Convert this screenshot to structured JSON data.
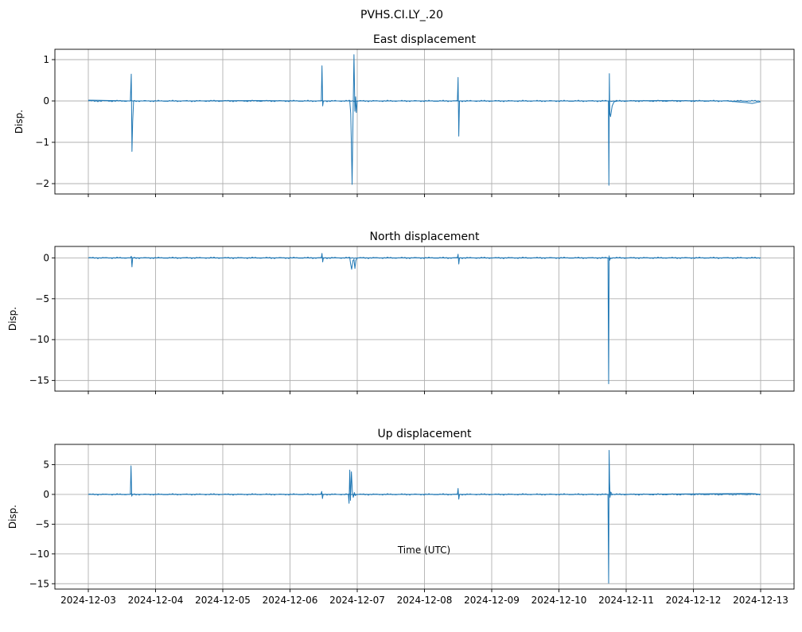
{
  "figure": {
    "suptitle": "PVHS.CI.LY_.20",
    "xlabel": "Time (UTC)",
    "line_color": "#1f77b4"
  },
  "chart_data": [
    {
      "type": "line",
      "title": "East displacement",
      "ylabel": "Disp.",
      "xlim": [
        "2024-12-03",
        "2024-12-13"
      ],
      "ylim": [
        -2.25,
        1.25
      ],
      "yticks": [
        1,
        0,
        -1,
        -2
      ],
      "ytick_labels": [
        "1",
        "0",
        "−1",
        "−2"
      ],
      "grid": true,
      "baseline": 0,
      "x": [
        "2024-12-03T00:00",
        "2024-12-03T15:00",
        "2024-12-03T15:20",
        "2024-12-03T15:35",
        "2024-12-03T15:50",
        "2024-12-03T16:10",
        "2024-12-04T12:00",
        "2024-12-05T12:00",
        "2024-12-06T06:00",
        "2024-12-06T11:10",
        "2024-12-06T11:25",
        "2024-12-06T11:40",
        "2024-12-06T11:55",
        "2024-12-06T21:20",
        "2024-12-06T21:40",
        "2024-12-06T21:55",
        "2024-12-06T22:10",
        "2024-12-06T22:30",
        "2024-12-06T22:50",
        "2024-12-06T23:10",
        "2024-12-06T23:25",
        "2024-12-06T23:40",
        "2024-12-07T00:00",
        "2024-12-07T12:00",
        "2024-12-08T11:45",
        "2024-12-08T12:00",
        "2024-12-08T12:15",
        "2024-12-08T12:30",
        "2024-12-09T12:00",
        "2024-12-10T12:00",
        "2024-12-10T17:40",
        "2024-12-10T17:50",
        "2024-12-10T18:00",
        "2024-12-10T18:10",
        "2024-12-10T18:25",
        "2024-12-10T19:00",
        "2024-12-10T19:40",
        "2024-12-10T21:00",
        "2024-12-11T12:00",
        "2024-12-12T12:00",
        "2024-12-12T19:00",
        "2024-12-12T21:00",
        "2024-12-12T23:00",
        "2024-12-13T00:00"
      ],
      "values": [
        0.02,
        0.0,
        0.65,
        -1.22,
        -0.5,
        0.0,
        0.0,
        0.01,
        0.0,
        0.0,
        0.85,
        -0.12,
        0.0,
        0.0,
        -0.3,
        -1.05,
        -2.02,
        -0.4,
        1.12,
        -0.25,
        0.1,
        -0.28,
        0.0,
        0.0,
        0.0,
        0.57,
        -0.85,
        0.0,
        0.0,
        0.0,
        0.0,
        -2.04,
        0.66,
        -0.3,
        -0.38,
        -0.12,
        -0.02,
        0.0,
        0.01,
        0.0,
        -0.04,
        -0.06,
        -0.03,
        -0.02
      ]
    },
    {
      "type": "line",
      "title": "North displacement",
      "ylabel": "Disp.",
      "xlim": [
        "2024-12-03",
        "2024-12-13"
      ],
      "ylim": [
        -16.3,
        1.4
      ],
      "yticks": [
        0,
        -5,
        -10,
        -15
      ],
      "ytick_labels": [
        "0",
        "−5",
        "−10",
        "−15"
      ],
      "grid": true,
      "baseline": 0,
      "x": [
        "2024-12-03T00:00",
        "2024-12-03T15:00",
        "2024-12-03T15:20",
        "2024-12-03T15:35",
        "2024-12-03T15:50",
        "2024-12-06T11:10",
        "2024-12-06T11:25",
        "2024-12-06T11:40",
        "2024-12-06T11:55",
        "2024-12-06T21:20",
        "2024-12-06T21:40",
        "2024-12-06T22:00",
        "2024-12-06T22:30",
        "2024-12-06T22:50",
        "2024-12-06T23:10",
        "2024-12-06T23:30",
        "2024-12-07T00:00",
        "2024-12-08T11:45",
        "2024-12-08T12:00",
        "2024-12-08T12:15",
        "2024-12-08T12:30",
        "2024-12-10T17:30",
        "2024-12-10T17:45",
        "2024-12-10T17:55",
        "2024-12-10T18:05",
        "2024-12-10T18:20",
        "2024-12-10T19:00",
        "2024-12-13T00:00"
      ],
      "values": [
        0.0,
        0.0,
        0.2,
        -1.1,
        0.0,
        0.0,
        0.55,
        -0.5,
        0.0,
        0.0,
        -0.8,
        -1.4,
        -0.3,
        -0.2,
        -1.3,
        -0.3,
        0.0,
        0.0,
        0.45,
        -0.75,
        0.0,
        0.0,
        -15.4,
        0.25,
        -0.3,
        -0.1,
        0.0,
        0.0
      ]
    },
    {
      "type": "line",
      "title": "Up displacement",
      "ylabel": "Disp.",
      "xlim": [
        "2024-12-03",
        "2024-12-13"
      ],
      "ylim": [
        -15.9,
        8.4
      ],
      "yticks": [
        5,
        0,
        -5,
        -10,
        -15
      ],
      "ytick_labels": [
        "5",
        "0",
        "−5",
        "−10",
        "−15"
      ],
      "grid": true,
      "baseline": 0,
      "x": [
        "2024-12-03T00:00",
        "2024-12-03T15:00",
        "2024-12-03T15:15",
        "2024-12-03T15:30",
        "2024-12-03T15:45",
        "2024-12-06T11:00",
        "2024-12-06T11:20",
        "2024-12-06T11:35",
        "2024-12-06T11:50",
        "2024-12-06T20:50",
        "2024-12-06T21:05",
        "2024-12-06T21:20",
        "2024-12-06T21:35",
        "2024-12-06T21:55",
        "2024-12-06T22:15",
        "2024-12-06T22:35",
        "2024-12-06T23:00",
        "2024-12-06T23:20",
        "2024-12-06T23:40",
        "2024-12-07T00:00",
        "2024-12-08T11:45",
        "2024-12-08T12:00",
        "2024-12-08T12:15",
        "2024-12-08T12:30",
        "2024-12-10T17:30",
        "2024-12-10T17:45",
        "2024-12-10T17:55",
        "2024-12-10T18:05",
        "2024-12-10T18:15",
        "2024-12-10T18:30",
        "2024-12-10T19:00",
        "2024-12-12T20:00",
        "2024-12-12T22:00",
        "2024-12-13T00:00"
      ],
      "values": [
        0.0,
        0.0,
        4.8,
        -0.3,
        0.0,
        0.0,
        0.5,
        -0.7,
        0.0,
        0.0,
        -1.5,
        4.1,
        -1.0,
        3.8,
        0.5,
        -0.5,
        0.3,
        -0.2,
        0.0,
        0.0,
        0.0,
        1.0,
        -0.8,
        0.0,
        0.0,
        -14.9,
        7.4,
        2.0,
        -0.5,
        0.4,
        0.0,
        0.15,
        0.1,
        0.0
      ]
    }
  ],
  "x_axis": {
    "tick_labels": [
      "2024-12-03",
      "2024-12-04",
      "2024-12-05",
      "2024-12-06",
      "2024-12-07",
      "2024-12-08",
      "2024-12-09",
      "2024-12-10",
      "2024-12-11",
      "2024-12-12",
      "2024-12-13"
    ]
  }
}
